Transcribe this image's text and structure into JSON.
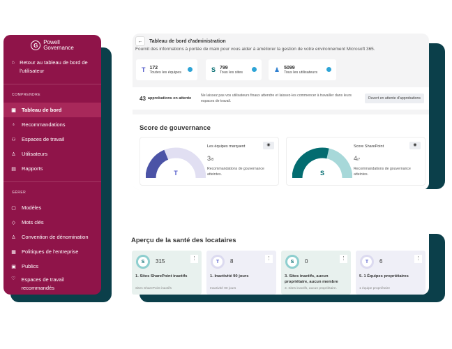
{
  "sidebar": {
    "brand_line1": "Powell",
    "brand_line2": "Governance",
    "back_label": "Retour au tableau de bord de l'utilisateur",
    "section1": "COMPRENDRE",
    "section2": "GÉRER",
    "items1": [
      {
        "label": "Tableau de bord",
        "icon": "dashboard-icon"
      },
      {
        "label": "Recommandations",
        "icon": "lightbulb-icon"
      },
      {
        "label": "Espaces de travail",
        "icon": "workspaces-icon"
      },
      {
        "label": "Utilisateurs",
        "icon": "user-icon"
      },
      {
        "label": "Rapports",
        "icon": "report-icon"
      }
    ],
    "items2": [
      {
        "label": "Modèles",
        "icon": "template-icon"
      },
      {
        "label": "Mots clés",
        "icon": "tag-icon"
      },
      {
        "label": "Convention de dénomination",
        "icon": "naming-icon"
      },
      {
        "label": "Politiques de l'entreprise",
        "icon": "policy-icon"
      },
      {
        "label": "Publics",
        "icon": "audience-icon"
      },
      {
        "label": "Espaces de travail recommandés",
        "icon": "heart-icon"
      }
    ]
  },
  "dashboard": {
    "title": "Tableau de bord d'administration",
    "subtitle": "Fournit des informations à portée de main pour vous aider à améliorer la gestion de votre environnement Microsoft 365.",
    "stats": [
      {
        "value": "172",
        "label": "Toutes les équipes"
      },
      {
        "value": "799",
        "label": "Tous les sites"
      },
      {
        "value": "5099",
        "label": "Tous les utilisateurs"
      }
    ],
    "approvals": {
      "count": "43",
      "label": "approbations en attente",
      "description": "Ne laissez pas vos utilisateurs finaux attendre et laissez-les commencer à travailler dans leurs espaces de travail.",
      "button": "Ouvert en attente d'approbations"
    }
  },
  "score": {
    "title": "Score de gouvernance",
    "cards": [
      {
        "title": "Les équipes marquent",
        "value": "3",
        "total": "/8",
        "desc": "Recommandations de gouvernance atteintes.",
        "fraction": 0.375,
        "color": "#4b53a6",
        "track": "#e1dff2"
      },
      {
        "title": "Score SharePoint",
        "value": "4",
        "total": "/7",
        "desc": "Recommandations de gouvernance atteintes.",
        "fraction": 0.571,
        "color": "#036c70",
        "track": "#a7d8d9"
      }
    ]
  },
  "health": {
    "title": "Aperçu de la santé des locataires",
    "cards": [
      {
        "value": "315",
        "title": "1. Sites SharePoint inactifs",
        "sub": "Sites SharePoint inactifs",
        "bg": "#e8f1ee",
        "ring": "#8ecfcf"
      },
      {
        "value": "8",
        "title": "1. Inactivité 90 jours",
        "sub": "Inactivité 90 jours",
        "bg": "#efeff7",
        "ring": "#dcdaf0"
      },
      {
        "value": "0",
        "title": "3. Sites inactifs, aucun propriétaire, aucun membre",
        "sub": "3. Sites inactifs, aucun propriétaire.",
        "bg": "#e8f1ee",
        "ring": "#8ecfcf"
      },
      {
        "value": "6",
        "title": "5. 1 Équipes propriétaires",
        "sub": "1 équipe propriétaire",
        "bg": "#efeff7",
        "ring": "#dcdaf0"
      }
    ]
  }
}
